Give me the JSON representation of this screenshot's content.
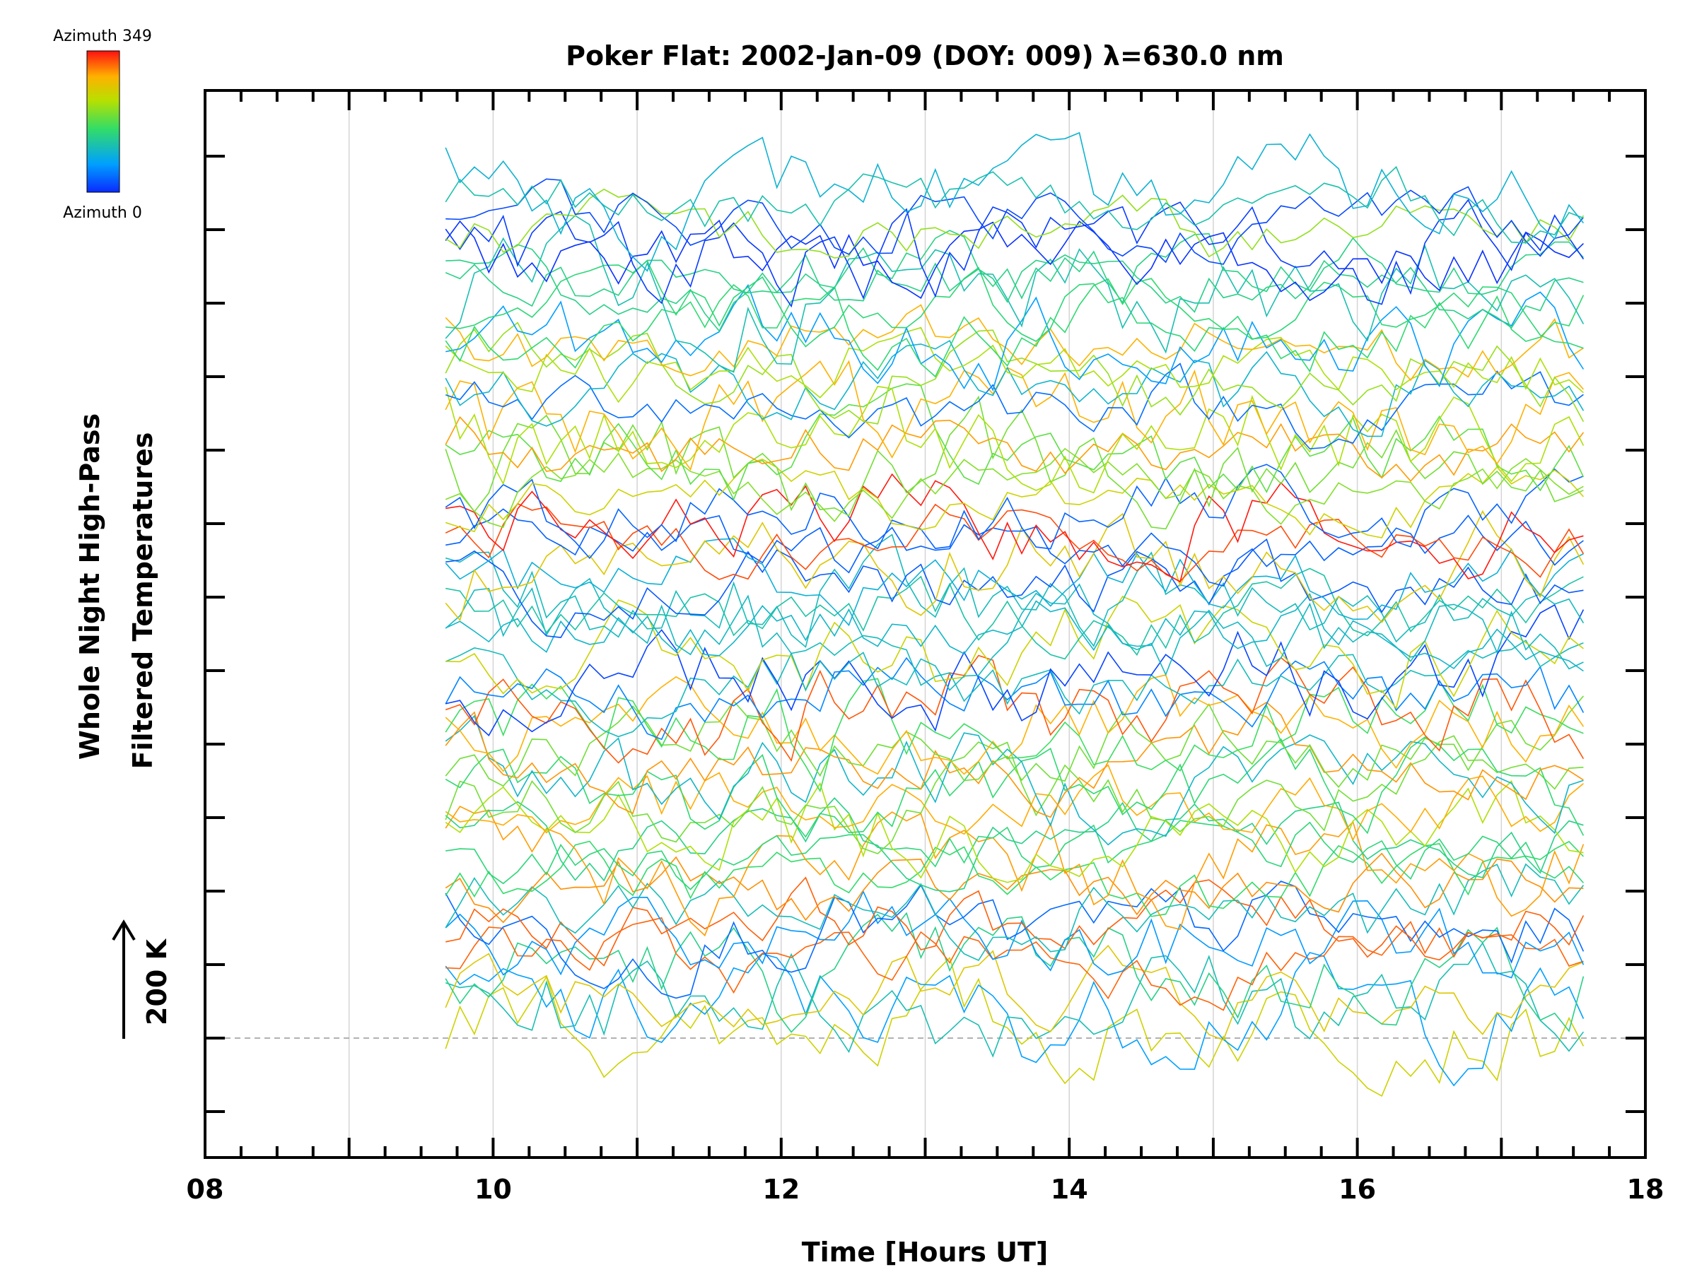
{
  "chart_data": {
    "type": "line",
    "title": "Poker Flat: 2002-Jan-09 (DOY: 009) λ=630.0 nm",
    "xlabel": "Time [Hours UT]",
    "ylabel_line1": "Whole Night High-Pass",
    "ylabel_line2": "Filtered Temperatures",
    "scale_label": "200 K",
    "xlim": [
      8,
      18
    ],
    "x_ticks": [
      8,
      10,
      12,
      14,
      16,
      18
    ],
    "x_tick_labels": [
      "08",
      "10",
      "12",
      "14",
      "16",
      "18"
    ],
    "ylim": [
      -1.5,
      13
    ],
    "offset_step_K": 200,
    "num_series": 64,
    "time_start": 9.67,
    "time_end": 17.58,
    "time_step": 0.1,
    "colorbar": {
      "top_label": "Azimuth 349",
      "bottom_label": "Azimuth 0",
      "azimuth_min": 0,
      "azimuth_max": 349
    },
    "note": "Stacked offset traces of high-pass filtered temperatures, one per azimuth; each trace offset vertically; colored by azimuth."
  }
}
